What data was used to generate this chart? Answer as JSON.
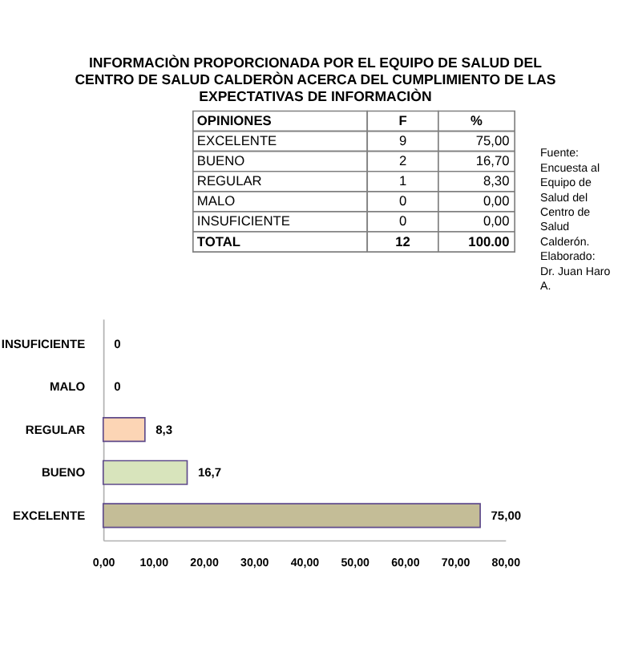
{
  "chart_data": {
    "type": "bar",
    "orientation": "horizontal",
    "title": "INFORMACIÒN PROPORCIONADA POR EL EQUIPO DE SALUD DEL CENTRO DE SALUD CALDERÒN ACERCA DEL CUMPLIMIENTO DE LAS EXPECTATIVAS DE INFORMACIÒN",
    "categories": [
      "INSUFICIENTE",
      "MALO",
      "REGULAR",
      "BUENO",
      "EXCELENTE"
    ],
    "values": [
      0,
      0,
      8.3,
      16.7,
      75.0
    ],
    "colors": [
      null,
      null,
      "#fcd5b5",
      "#d8e4bc",
      "#c4bd97"
    ],
    "value_labels": [
      "0",
      "0",
      "8,3",
      "16,7",
      "75,00"
    ],
    "xlim": [
      0,
      80
    ],
    "xticks": [
      {
        "value": 0,
        "label": "0,00"
      },
      {
        "value": 10,
        "label": "10,00"
      },
      {
        "value": 20,
        "label": "20,00"
      },
      {
        "value": 30,
        "label": "30,00"
      },
      {
        "value": 40,
        "label": "40,00"
      },
      {
        "value": 50,
        "label": "50,00"
      },
      {
        "value": 60,
        "label": "60,00"
      },
      {
        "value": 70,
        "label": "70,00"
      },
      {
        "value": 80,
        "label": "80,00"
      }
    ],
    "grid": false,
    "annotations": [
      "OPINIONES",
      "F",
      "%",
      "EXCELENTE",
      "9",
      "75,00",
      "BUENO",
      "2",
      "16,70",
      "REGULAR",
      "1",
      "8,30",
      "MALO",
      "0",
      "0,00",
      "INSUFICIENTE",
      "0",
      "0,00",
      "TOTAL",
      "12",
      "100.00",
      "Fuente: Encuesta al Equipo de Salud del Centro de Salud Calderón. Elaborado: Dr. Juan Haro A."
    ]
  }
}
